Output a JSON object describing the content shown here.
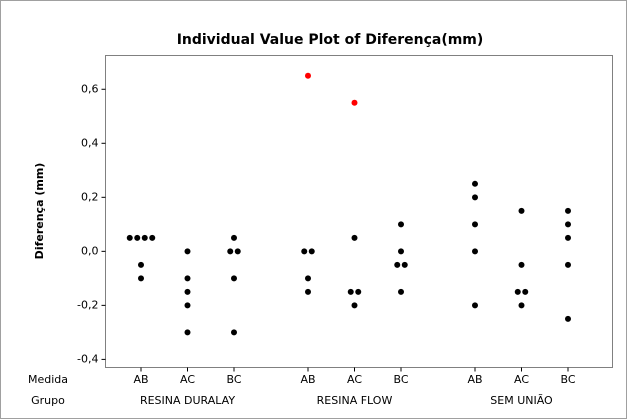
{
  "chart_data": {
    "type": "individual_value",
    "title": "Individual Value Plot of Diferença(mm)",
    "ylabel": "Diferença (mm)",
    "x_labels": [
      "Medida",
      "Grupo"
    ],
    "categories": [
      "AB",
      "AC",
      "BC",
      "AB",
      "AC",
      "BC",
      "AB",
      "AC",
      "BC"
    ],
    "groups": [
      "RESINA DURALAY",
      "RESINA FLOW",
      "SEM UNIÃO"
    ],
    "values": [
      [
        0.05,
        0.05,
        0.05,
        0.05,
        -0.05,
        -0.1
      ],
      [
        0,
        -0.1,
        -0.15,
        -0.2,
        -0.3
      ],
      [
        0.05,
        0,
        0,
        -0.1,
        -0.3
      ],
      [
        0.65,
        0,
        0,
        -0.1,
        -0.15
      ],
      [
        0.55,
        0.05,
        -0.15,
        -0.15,
        -0.2
      ],
      [
        0.1,
        0,
        -0.05,
        -0.05,
        -0.15
      ],
      [
        0.25,
        0.2,
        0.1,
        0,
        -0.2
      ],
      [
        0.15,
        -0.05,
        -0.15,
        -0.15,
        -0.2
      ],
      [
        0.15,
        0.1,
        0.05,
        -0.05,
        -0.25
      ]
    ],
    "colors": [
      [
        "#000000",
        "#000000",
        "#000000",
        "#000000",
        "#000000",
        "#000000"
      ],
      [
        "#000000",
        "#000000",
        "#000000",
        "#000000",
        "#000000"
      ],
      [
        "#000000",
        "#000000",
        "#000000",
        "#000000",
        "#000000"
      ],
      [
        "#ff0000",
        "#000000",
        "#000000",
        "#000000",
        "#000000"
      ],
      [
        "#ff0000",
        "#000000",
        "#000000",
        "#000000",
        "#000000"
      ],
      [
        "#000000",
        "#000000",
        "#000000",
        "#000000",
        "#000000"
      ],
      [
        "#000000",
        "#000000",
        "#000000",
        "#000000",
        "#000000"
      ],
      [
        "#000000",
        "#000000",
        "#000000",
        "#000000",
        "#000000"
      ],
      [
        "#000000",
        "#000000",
        "#000000",
        "#000000",
        "#000000"
      ]
    ],
    "ylim": [
      -0.43,
      0.725
    ],
    "yticks": [
      {
        "value": -0.4,
        "label": "-0,4"
      },
      {
        "value": -0.2,
        "label": "-0,2"
      },
      {
        "value": 0,
        "label": "0,0"
      },
      {
        "value": 0.2,
        "label": "0,2"
      },
      {
        "value": 0.4,
        "label": "0,4"
      },
      {
        "value": 0.6,
        "label": "0,6"
      }
    ],
    "grid": false
  }
}
